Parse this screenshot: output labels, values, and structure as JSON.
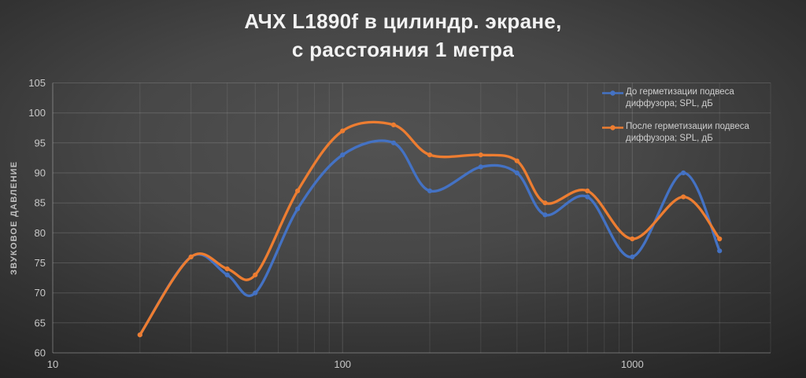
{
  "title": {
    "line1": "АЧХ L1890f в цилиндр. экране,",
    "line2": "с расстояния 1 метра"
  },
  "colors": {
    "background_center": "#515151",
    "background_edge": "#232323",
    "series_before": "#4472C4",
    "series_after": "#ED7D31",
    "grid_minor": "rgba(255,255,255,0.09)",
    "grid_line": "rgba(255,255,255,0.15)",
    "axis_line": "rgba(255,255,255,0.32)",
    "tick_text": "#c7c7c7",
    "title_text": "#f2f2f2",
    "legend_text": "#cfcfcf"
  },
  "legend": {
    "items": [
      {
        "label_line1": "До герметизации подвеса",
        "label_line2": "диффузора; SPL, дБ",
        "color": "#4472C4"
      },
      {
        "label_line1": "После герметизации подвеса",
        "label_line2": "диффузора; SPL, дБ",
        "color": "#ED7D31"
      }
    ]
  },
  "chart_data": {
    "type": "line",
    "title": "АЧХ L1890f в цилиндр. экране, с расстояния 1 метра",
    "ylabel": "ЗВУКОВОЕ ДАВЛЕНИЕ",
    "x_scale": "log",
    "xlim": [
      10,
      3000
    ],
    "ylim": [
      60,
      105
    ],
    "x_ticks": [
      10,
      100,
      1000
    ],
    "y_ticks": [
      60,
      65,
      70,
      75,
      80,
      85,
      90,
      95,
      100,
      105
    ],
    "grid": true,
    "smooth": true,
    "markers": true,
    "legend_position": "top-right",
    "x": [
      20,
      30,
      40,
      50,
      70,
      100,
      150,
      200,
      300,
      400,
      500,
      700,
      1000,
      1500,
      2000
    ],
    "series": [
      {
        "name": "До герметизации подвеса диффузора; SPL, дБ",
        "color": "#4472C4",
        "values": [
          63,
          76,
          73,
          70,
          84,
          93,
          95,
          87,
          91,
          90,
          83,
          86,
          76,
          90,
          77
        ]
      },
      {
        "name": "После герметизации подвеса диффузора; SPL, дБ",
        "color": "#ED7D31",
        "values": [
          63,
          76,
          74,
          73,
          87,
          97,
          98,
          93,
          93,
          92,
          85,
          87,
          79,
          86,
          79
        ]
      }
    ]
  }
}
